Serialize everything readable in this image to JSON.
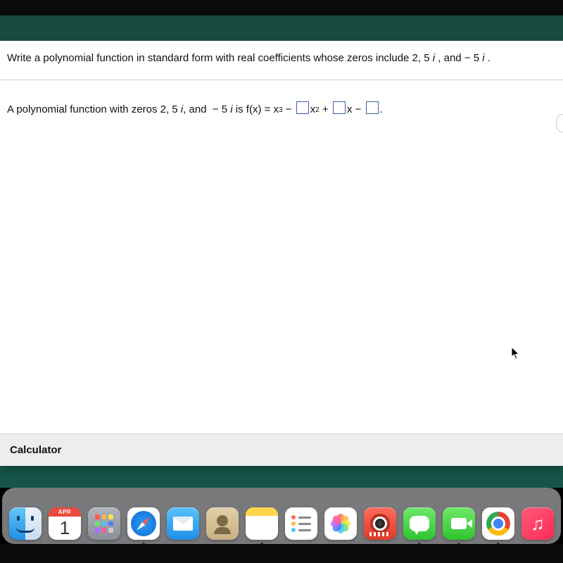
{
  "question": {
    "prompt_parts": [
      "Write a polynomial function in standard form with real coefficients whose zeros include 2, 5 ",
      "i",
      " , and  − 5 ",
      "i",
      " ."
    ]
  },
  "answer": {
    "lead_parts": [
      "A polynomial function with zeros 2, 5 ",
      "i",
      ", and  − 5 ",
      "i",
      " is f(x) = x"
    ],
    "exp1": "3",
    "mid1": " − ",
    "exp2": "2",
    "mid2": " + ",
    "mid3": "x − ",
    "tail": "."
  },
  "calculator_label": "Calculator",
  "calendar": {
    "month": "APR",
    "day": "1"
  },
  "launchpad_colors": [
    "#ff5a5a",
    "#ffb74a",
    "#ffe34a",
    "#6ee86a",
    "#4ac7ff",
    "#4a7dff",
    "#b56aff",
    "#ff5aa8",
    "#cccccc"
  ],
  "reminder_colors": [
    "#ff6a5a",
    "#ffb74a",
    "#4ac7ff"
  ],
  "photo_petals": [
    "#ff6a5a",
    "#ffb74a",
    "#ffe34a",
    "#6ee86a",
    "#4ac7ff",
    "#4a7dff",
    "#b56aff",
    "#ff5aa8"
  ],
  "dock_running": {
    "finder": true,
    "safari": true,
    "notes": true,
    "messages": true,
    "facetime": true,
    "chrome": true
  }
}
